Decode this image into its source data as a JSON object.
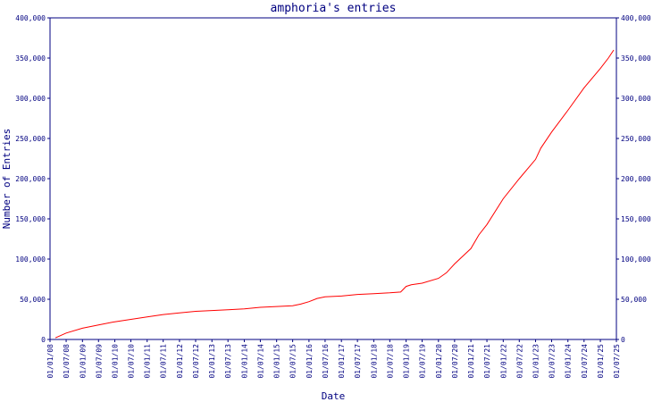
{
  "colors": {
    "axis": "#000080",
    "line": "#ff0000",
    "background": "#ffffff"
  },
  "chart_data": {
    "type": "line",
    "title": "amphoria's entries",
    "xlabel": "Date",
    "ylabel": "Number of Entries",
    "grid": false,
    "legend": "none",
    "ylim": [
      0,
      400000
    ],
    "xlim": [
      "2008-01-01",
      "2025-07-01"
    ],
    "y_ticks": [
      "0",
      "50,000",
      "100,000",
      "150,000",
      "200,000",
      "250,000",
      "300,000",
      "350,000",
      "400,000"
    ],
    "y_tick_values": [
      0,
      50000,
      100000,
      150000,
      200000,
      250000,
      300000,
      350000,
      400000
    ],
    "x_ticks": [
      "01/01/08",
      "01/07/08",
      "01/01/09",
      "01/07/09",
      "01/01/10",
      "01/07/10",
      "01/01/11",
      "01/07/11",
      "01/01/12",
      "01/07/12",
      "01/01/13",
      "01/07/13",
      "01/01/14",
      "01/07/14",
      "01/01/15",
      "01/07/15",
      "01/01/16",
      "01/07/16",
      "01/01/17",
      "01/07/17",
      "01/01/18",
      "01/07/18",
      "01/01/19",
      "01/07/19",
      "01/01/20",
      "01/07/20",
      "01/01/21",
      "01/07/21",
      "01/01/22",
      "01/07/22",
      "01/01/23",
      "01/07/23",
      "01/01/24",
      "01/07/24",
      "01/01/25",
      "01/07/25"
    ],
    "series": [
      {
        "color": "#ff0000",
        "x": [
          "2008-03-01",
          "2008-07-01",
          "2009-01-01",
          "2009-07-01",
          "2010-01-01",
          "2010-07-01",
          "2011-01-01",
          "2011-07-01",
          "2012-01-01",
          "2012-07-01",
          "2013-01-01",
          "2013-07-01",
          "2014-01-01",
          "2014-07-01",
          "2015-01-01",
          "2015-07-01",
          "2015-10-01",
          "2016-01-01",
          "2016-04-01",
          "2016-07-01",
          "2017-01-01",
          "2017-07-01",
          "2018-01-01",
          "2018-07-01",
          "2018-11-01",
          "2019-01-01",
          "2019-03-01",
          "2019-07-01",
          "2020-01-01",
          "2020-04-01",
          "2020-07-01",
          "2021-01-01",
          "2021-04-01",
          "2021-07-01",
          "2022-01-01",
          "2022-07-01",
          "2023-01-01",
          "2023-03-01",
          "2023-07-01",
          "2024-01-01",
          "2024-07-01",
          "2025-01-01",
          "2025-04-01",
          "2025-06-01"
        ],
        "y": [
          2000,
          8000,
          14000,
          18000,
          22000,
          25000,
          28000,
          31000,
          33000,
          35000,
          36000,
          37000,
          38000,
          40000,
          41000,
          42000,
          44000,
          47000,
          51000,
          53000,
          54000,
          56000,
          57000,
          58000,
          59000,
          66000,
          68000,
          70000,
          76000,
          83000,
          94000,
          113000,
          130000,
          143000,
          175000,
          200000,
          224000,
          238000,
          258000,
          285000,
          313000,
          337000,
          350000,
          360000
        ]
      }
    ]
  }
}
